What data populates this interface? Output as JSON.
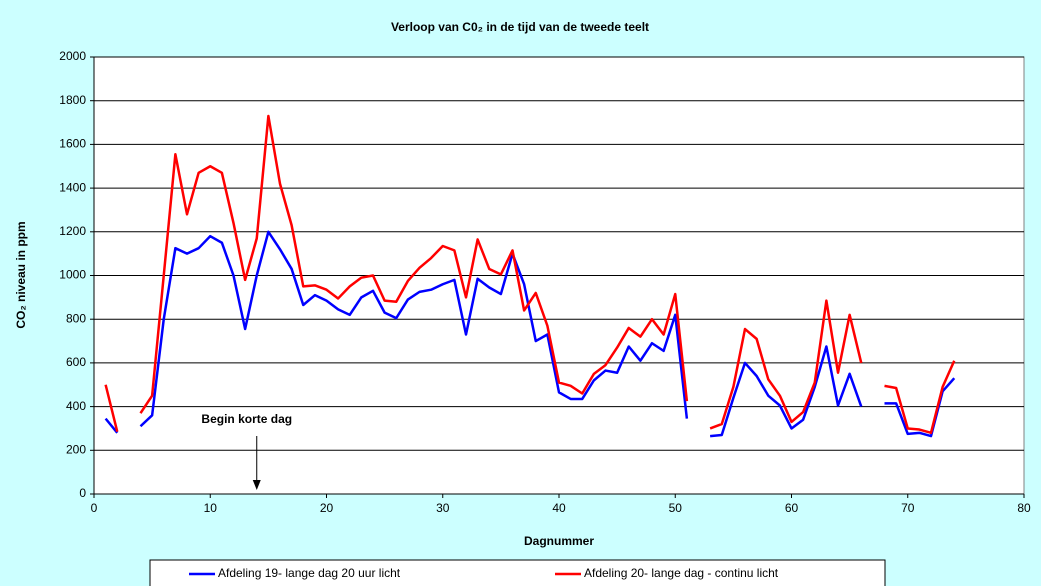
{
  "chart_data": {
    "type": "line",
    "title": "Verloop van C0₂ in de tijd van de tweede teelt",
    "xlabel": "Dagnummer",
    "ylabel": "CO₂ niveau in ppm",
    "annotation": {
      "text": "Begin korte dag",
      "x": 14
    },
    "xlim": [
      0,
      80
    ],
    "xticks": [
      0,
      10,
      20,
      30,
      40,
      50,
      60,
      70,
      80
    ],
    "ylim": [
      0,
      2000
    ],
    "yticks": [
      0,
      200,
      400,
      600,
      800,
      1000,
      1200,
      1400,
      1600,
      1800,
      2000
    ],
    "grid": true,
    "legend": "bottom",
    "x": [
      1,
      2,
      3,
      4,
      5,
      6,
      7,
      8,
      9,
      10,
      11,
      12,
      13,
      14,
      15,
      16,
      17,
      18,
      19,
      20,
      21,
      22,
      23,
      24,
      25,
      26,
      27,
      28,
      29,
      30,
      31,
      32,
      33,
      34,
      35,
      36,
      37,
      38,
      39,
      40,
      41,
      42,
      43,
      44,
      45,
      46,
      47,
      48,
      49,
      50,
      51,
      52,
      53,
      54,
      55,
      56,
      57,
      58,
      59,
      60,
      61,
      62,
      63,
      64,
      65,
      66,
      67,
      68,
      69,
      70,
      71,
      72,
      73,
      74
    ],
    "series": [
      {
        "name": "Afdeling 19- lange dag 20 uur licht",
        "color": "#0000ff",
        "values": [
          345,
          280,
          null,
          310,
          360,
          800,
          1125,
          1100,
          1125,
          1180,
          1150,
          1000,
          755,
          1000,
          1200,
          1120,
          1030,
          865,
          910,
          885,
          845,
          820,
          900,
          930,
          830,
          805,
          890,
          925,
          935,
          960,
          980,
          730,
          985,
          945,
          915,
          1100,
          960,
          700,
          730,
          465,
          435,
          435,
          520,
          565,
          555,
          675,
          610,
          690,
          655,
          820,
          345,
          null,
          265,
          270,
          440,
          600,
          540,
          450,
          405,
          300,
          340,
          490,
          675,
          405,
          550,
          400,
          null,
          415,
          415,
          275,
          280,
          265,
          470,
          530
        ]
      },
      {
        "name": "Afdeling 20- lange dag - continu licht",
        "color": "#ff0000",
        "values": [
          500,
          285,
          null,
          370,
          450,
          1000,
          1555,
          1280,
          1470,
          1500,
          1470,
          1240,
          980,
          1170,
          1730,
          1420,
          1230,
          950,
          955,
          935,
          895,
          950,
          990,
          1000,
          885,
          880,
          975,
          1035,
          1080,
          1135,
          1115,
          900,
          1165,
          1030,
          1005,
          1115,
          840,
          920,
          770,
          510,
          495,
          460,
          550,
          590,
          670,
          760,
          720,
          800,
          730,
          915,
          425,
          null,
          300,
          320,
          490,
          755,
          710,
          525,
          450,
          330,
          375,
          510,
          885,
          555,
          820,
          600,
          null,
          495,
          485,
          300,
          295,
          280,
          490,
          610
        ]
      }
    ]
  }
}
